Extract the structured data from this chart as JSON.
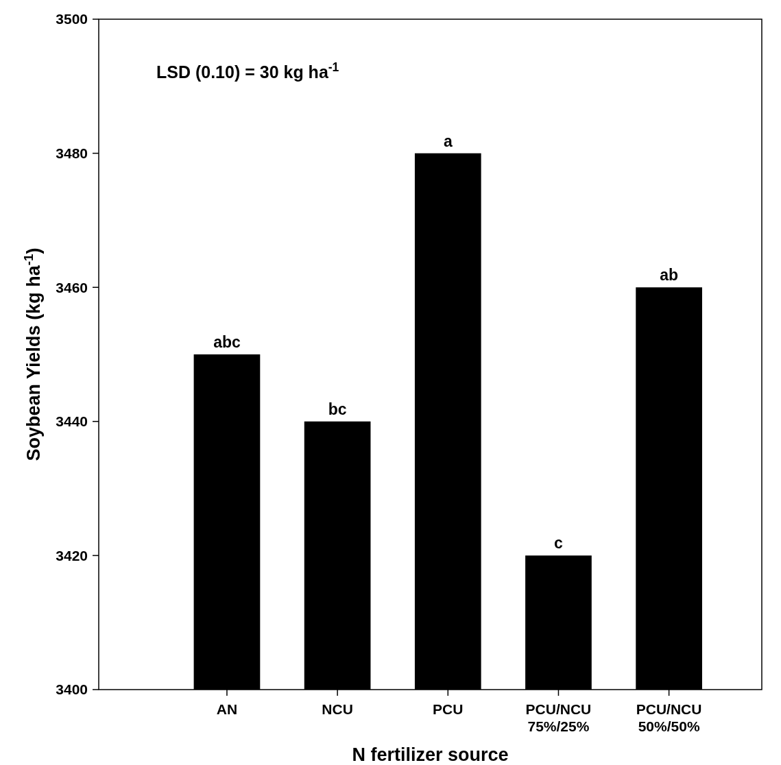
{
  "chart_data": {
    "type": "bar",
    "xlabel": "N fertilizer source",
    "ylabel": "Soybean Yields (kg ha$^{-1}$)",
    "categories": [
      "AN",
      "NCU",
      "PCU",
      "PCU/NCU\n75%/25%",
      "PCU/NCU\n50%/50%"
    ],
    "values": [
      3450,
      3440,
      3480,
      3420,
      3460
    ],
    "color": "#000000",
    "ylim": [
      3400,
      3500
    ],
    "yticks": [
      3400,
      3420,
      3440,
      3460,
      3480,
      3500
    ],
    "grid": false,
    "annotations": [
      "LSD (0.10) = 30 kg ha$^{-1}$",
      {
        "text": "abc",
        "x": "AN",
        "y": 3450
      },
      {
        "text": "bc",
        "x": "NCU",
        "y": 3440
      },
      {
        "text": "a",
        "x": "PCU",
        "y": 3480
      },
      {
        "text": "c",
        "x": "PCU/NCU\n75%/25%",
        "y": 3420
      },
      {
        "text": "ab",
        "x": "PCU/NCU\n50%/50%",
        "y": 3460
      }
    ]
  }
}
